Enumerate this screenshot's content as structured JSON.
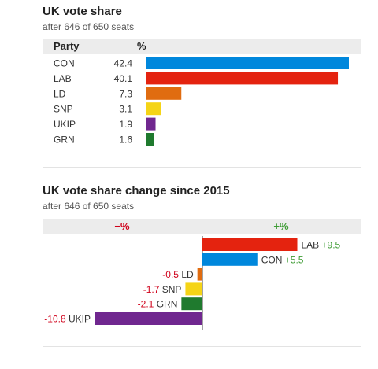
{
  "chart_data": [
    {
      "type": "bar",
      "title": "UK vote share",
      "subtitle": "after 646 of 650 seats",
      "column_headers": [
        "Party",
        "%"
      ],
      "categories": [
        "CON",
        "LAB",
        "LD",
        "SNP",
        "UKIP",
        "GRN"
      ],
      "values": [
        42.4,
        40.1,
        7.3,
        3.1,
        1.9,
        1.6
      ],
      "value_labels": [
        "42.4",
        "40.1",
        "7.3",
        "3.1",
        "1.9",
        "1.6"
      ],
      "colors": [
        "#0087dc",
        "#e4230f",
        "#e06c10",
        "#f5d416",
        "#70278f",
        "#1f7a2e"
      ],
      "orientation": "horizontal",
      "xlim": [
        0,
        43
      ]
    },
    {
      "type": "bar",
      "title": "UK vote share change since 2015",
      "subtitle": "after 646 of 650 seats",
      "column_headers": [
        "−%",
        "+%"
      ],
      "categories": [
        "LAB",
        "CON",
        "LD",
        "SNP",
        "GRN",
        "UKIP"
      ],
      "values": [
        9.5,
        5.5,
        -0.5,
        -1.7,
        -2.1,
        -10.8
      ],
      "value_labels": [
        "+9.5",
        "+5.5",
        "-0.5",
        "-1.7",
        "-2.1",
        "-10.8"
      ],
      "colors": [
        "#e4230f",
        "#0087dc",
        "#e06c10",
        "#f5d416",
        "#1f7a2e",
        "#70278f"
      ],
      "orientation": "horizontal",
      "xlim": [
        -11.2,
        11.2
      ]
    }
  ]
}
